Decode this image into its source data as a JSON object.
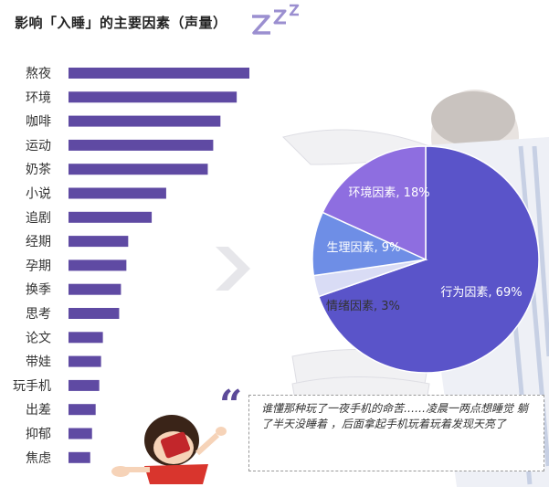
{
  "title": "影响「入睡」的主要因素（声量）",
  "quote_mark": "“",
  "quote_text": "谁懂那种玩了一夜手机的命苦……凌晨一两点想睡觉 躺了半天没睡着 ，后面拿起手机玩着玩着发现天亮了",
  "colors": {
    "bar": "#5f4aa3",
    "title": "#222222",
    "pie_behavior": "#5a54c9",
    "pie_environment": "#8e6ee0",
    "pie_physiology": "#6e8ee6",
    "pie_emotion": "#d9dcf5"
  },
  "chart_data": [
    {
      "type": "bar",
      "orientation": "horizontal",
      "categories": [
        "熬夜",
        "环境",
        "咖啡",
        "运动",
        "奶茶",
        "小说",
        "追剧",
        "经期",
        "孕期",
        "换季",
        "思考",
        "论文",
        "带娃",
        "玩手机",
        "出差",
        "抑郁",
        "焦虑"
      ],
      "values": [
        100,
        93,
        84,
        80,
        77,
        54,
        46,
        33,
        32,
        29,
        28,
        19,
        18,
        17,
        15,
        13,
        12
      ],
      "value_axis_visible": false
    },
    {
      "type": "pie",
      "slices": [
        {
          "label": "行为因素, 69%",
          "value": 69,
          "color": "#5a54c9"
        },
        {
          "label": "情绪因素, 3%",
          "value": 3,
          "color": "#d9dcf5"
        },
        {
          "label": "生理因素, 9%",
          "value": 9,
          "color": "#6e8ee6"
        },
        {
          "label": "环境因素, 18%",
          "value": 18,
          "color": "#8e6ee0"
        }
      ]
    }
  ]
}
